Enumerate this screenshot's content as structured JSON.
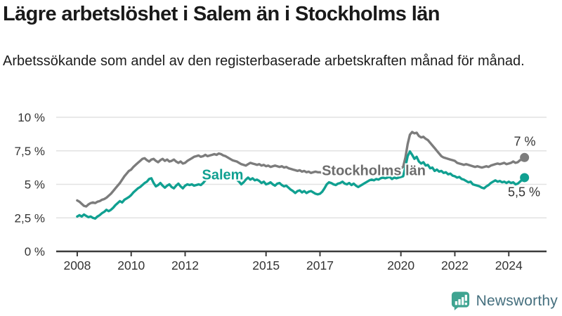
{
  "chart_data": {
    "type": "line",
    "title": "Lägre arbetslöshet i Salem än i Stockholms län",
    "subtitle": "Arbetssökande som andel av den registerbaserade arbetskraften månad för månad.",
    "x_start_year": 2008,
    "x_step_months": 1,
    "xlim": [
      2007.22,
      2025.4
    ],
    "ylim": [
      0,
      10
    ],
    "grid": "horizontal",
    "legend_position": "inline-labels",
    "yticks": [
      {
        "value": 0,
        "label": "0 %"
      },
      {
        "value": 2.5,
        "label": "2,5 %"
      },
      {
        "value": 5,
        "label": "5 %"
      },
      {
        "value": 7.5,
        "label": "7,5 %"
      },
      {
        "value": 10,
        "label": "10 %"
      }
    ],
    "xticks": [
      {
        "value": 2008,
        "label": "2008"
      },
      {
        "value": 2010,
        "label": "2010"
      },
      {
        "value": 2012,
        "label": "2012"
      },
      {
        "value": 2015,
        "label": "2015"
      },
      {
        "value": 2017,
        "label": "2017"
      },
      {
        "value": 2020,
        "label": "2020"
      },
      {
        "value": 2022,
        "label": "2022"
      },
      {
        "value": 2024,
        "label": "2024"
      }
    ],
    "series": [
      {
        "name": "Stockholms län",
        "color": "#7c7c7c",
        "label_color": "#6d6d6d",
        "end_label": "7 %",
        "name_label_pos": {
          "x": 532,
          "y": 244
        },
        "end_label_pos": {
          "x": 747,
          "y": 202
        },
        "values": [
          3.8,
          3.7,
          3.55,
          3.4,
          3.35,
          3.5,
          3.6,
          3.65,
          3.6,
          3.7,
          3.75,
          3.85,
          3.9,
          4.0,
          4.15,
          4.3,
          4.5,
          4.7,
          4.9,
          5.1,
          5.35,
          5.6,
          5.8,
          6.0,
          6.1,
          6.3,
          6.45,
          6.6,
          6.75,
          6.9,
          6.95,
          6.8,
          6.7,
          6.85,
          6.9,
          6.75,
          6.65,
          6.8,
          6.9,
          6.75,
          6.85,
          6.7,
          6.75,
          6.85,
          6.7,
          6.6,
          6.7,
          6.55,
          6.6,
          6.75,
          6.85,
          6.95,
          7.05,
          7.1,
          7.15,
          7.05,
          7.1,
          7.2,
          7.1,
          7.15,
          7.2,
          7.25,
          7.2,
          7.3,
          7.25,
          7.15,
          7.1,
          7.0,
          6.9,
          6.8,
          6.75,
          6.7,
          6.6,
          6.5,
          6.45,
          6.4,
          6.5,
          6.6,
          6.55,
          6.5,
          6.45,
          6.5,
          6.4,
          6.45,
          6.35,
          6.4,
          6.3,
          6.35,
          6.4,
          6.35,
          6.3,
          6.35,
          6.25,
          6.3,
          6.2,
          6.15,
          6.1,
          6.05,
          6.0,
          6.05,
          5.95,
          6.0,
          5.9,
          5.95,
          5.85,
          5.9,
          5.95,
          5.9,
          5.9,
          5.85,
          5.9,
          5.95,
          5.85,
          5.8,
          5.85,
          5.8,
          5.85,
          5.9,
          5.85,
          5.8,
          5.8,
          5.75,
          5.8,
          5.7,
          5.75,
          5.7,
          5.75,
          5.8,
          5.85,
          5.8,
          5.85,
          5.9,
          5.9,
          5.95,
          6.0,
          5.95,
          6.0,
          6.05,
          6.1,
          6.05,
          6.1,
          6.15,
          6.1,
          6.15,
          6.2,
          6.3,
          7.0,
          8.0,
          8.7,
          8.9,
          8.8,
          8.85,
          8.6,
          8.5,
          8.55,
          8.4,
          8.3,
          8.1,
          7.9,
          7.7,
          7.5,
          7.3,
          7.1,
          7.0,
          6.95,
          6.9,
          6.85,
          6.8,
          6.75,
          6.6,
          6.55,
          6.5,
          6.45,
          6.5,
          6.45,
          6.4,
          6.35,
          6.3,
          6.35,
          6.3,
          6.25,
          6.3,
          6.35,
          6.3,
          6.4,
          6.45,
          6.5,
          6.55,
          6.5,
          6.55,
          6.6,
          6.5,
          6.55,
          6.6,
          6.7,
          6.6,
          6.65,
          6.8,
          6.85,
          7.0
        ]
      },
      {
        "name": "Salem",
        "color": "#10a091",
        "label_color": "#10a091",
        "end_label": "5,5 %",
        "name_label_pos": {
          "x": 317,
          "y": 250
        },
        "end_label_pos": {
          "x": 746,
          "y": 274
        },
        "values": [
          2.6,
          2.7,
          2.6,
          2.75,
          2.65,
          2.55,
          2.6,
          2.5,
          2.45,
          2.6,
          2.7,
          2.85,
          2.95,
          3.1,
          3.0,
          3.1,
          3.25,
          3.45,
          3.6,
          3.75,
          3.65,
          3.85,
          3.95,
          4.05,
          4.2,
          4.4,
          4.55,
          4.7,
          4.8,
          4.95,
          5.1,
          5.2,
          5.4,
          5.45,
          5.1,
          4.85,
          4.95,
          5.1,
          4.9,
          4.75,
          4.9,
          5.0,
          4.8,
          4.7,
          4.9,
          5.05,
          4.85,
          4.7,
          4.9,
          5.0,
          4.95,
          5.0,
          4.9,
          4.95,
          5.0,
          4.95,
          5.1,
          5.3,
          5.55,
          5.75,
          5.7,
          5.6,
          5.65,
          5.55,
          5.6,
          5.5,
          5.55,
          5.45,
          5.5,
          5.4,
          5.45,
          5.35,
          5.2,
          5.0,
          5.15,
          5.35,
          5.5,
          5.35,
          5.45,
          5.3,
          5.35,
          5.25,
          5.1,
          5.2,
          5.0,
          5.05,
          5.15,
          5.0,
          4.9,
          5.05,
          5.1,
          4.95,
          4.85,
          4.9,
          4.75,
          4.6,
          4.5,
          4.35,
          4.5,
          4.55,
          4.4,
          4.5,
          4.35,
          4.45,
          4.5,
          4.4,
          4.3,
          4.25,
          4.3,
          4.45,
          4.7,
          5.0,
          5.15,
          5.1,
          5.0,
          4.95,
          5.05,
          5.1,
          5.2,
          5.05,
          5.0,
          5.1,
          4.95,
          5.05,
          4.9,
          4.8,
          4.9,
          5.0,
          5.1,
          5.2,
          5.3,
          5.35,
          5.3,
          5.4,
          5.35,
          5.45,
          5.5,
          5.45,
          5.5,
          5.55,
          5.4,
          5.5,
          5.45,
          5.5,
          5.55,
          5.6,
          6.3,
          7.1,
          7.45,
          7.2,
          6.9,
          7.05,
          6.7,
          6.55,
          6.65,
          6.4,
          6.45,
          6.2,
          6.25,
          6.0,
          6.1,
          5.95,
          6.0,
          5.85,
          5.9,
          5.75,
          5.8,
          5.65,
          5.6,
          5.5,
          5.55,
          5.4,
          5.35,
          5.25,
          5.15,
          5.2,
          5.0,
          4.95,
          4.9,
          4.85,
          4.75,
          4.7,
          4.85,
          4.95,
          5.1,
          5.2,
          5.3,
          5.2,
          5.25,
          5.15,
          5.2,
          5.1,
          5.2,
          5.1,
          5.15,
          5.0,
          5.05,
          5.2,
          5.35,
          5.5
        ]
      }
    ]
  },
  "colors": {
    "background": "#ffffff",
    "gridline": "#e2e2e2",
    "axis_line": "#3b3b3b",
    "axis_text": "#333333",
    "title_text": "#1a1a1a"
  },
  "footer": {
    "brand": "Newsworthy",
    "brand_icon": "bar-chart-speech-bubble-icon",
    "brand_icon_color": "#3fa491",
    "brand_text_color": "#456f7e"
  }
}
